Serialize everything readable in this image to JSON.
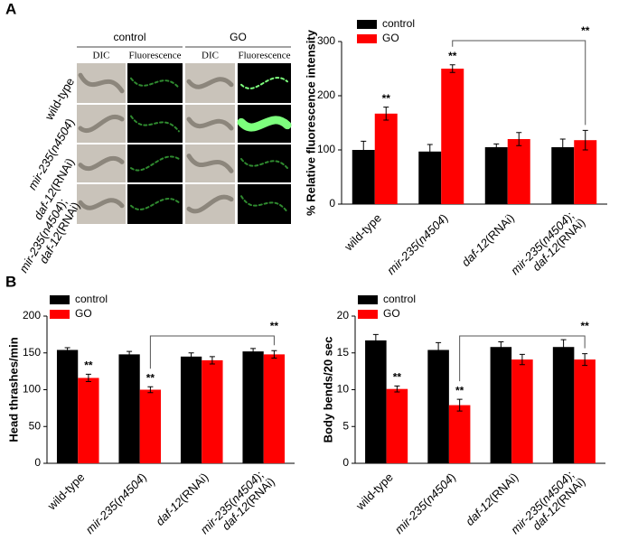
{
  "panels": [
    "A",
    "B"
  ],
  "image_grid": {
    "groups": [
      "control",
      "GO"
    ],
    "channels": [
      "DIC",
      "Fluorescence"
    ],
    "rows": [
      "wild-type",
      "mir-235(n4504)",
      "daf-12(RNAi)",
      "mir-235(n4504); daf-12(RNAi)"
    ]
  },
  "chart_data": [
    {
      "type": "bar",
      "ylabel": "% Relative fluorescence intensity",
      "categories": [
        "wild-type",
        "mir-235(n4504)",
        "daf-12(RNAi)",
        "mir-235(n4504); daf-12(RNAi)"
      ],
      "series": [
        {
          "name": "control",
          "color": "#000000",
          "values": [
            100,
            97,
            105,
            105
          ],
          "errors": [
            16,
            13,
            6,
            15
          ]
        },
        {
          "name": "GO",
          "color": "#ff0000",
          "values": [
            167,
            250,
            120,
            118
          ],
          "errors": [
            12,
            7,
            12,
            18
          ],
          "significance": [
            "**",
            "**",
            null,
            null
          ]
        }
      ],
      "comparisons": [
        {
          "label": "**",
          "from": 1,
          "to": 3
        }
      ],
      "ylim": [
        0,
        300
      ],
      "yticks": [
        0,
        100,
        200,
        300
      ],
      "grid": false,
      "legend": "top-left"
    },
    {
      "type": "bar",
      "ylabel": "Head thrashes/min",
      "categories": [
        "wild-type",
        "mir-235(n4504)",
        "daf-12(RNAi)",
        "mir-235(n4504); daf-12(RNAi)"
      ],
      "series": [
        {
          "name": "control",
          "color": "#000000",
          "values": [
            154,
            148,
            145,
            152
          ],
          "errors": [
            3,
            4,
            5,
            4
          ]
        },
        {
          "name": "GO",
          "color": "#ff0000",
          "values": [
            116,
            100,
            140,
            148
          ],
          "errors": [
            5,
            4,
            5,
            5
          ],
          "significance": [
            "**",
            "**",
            null,
            null
          ]
        }
      ],
      "comparisons": [
        {
          "label": "**",
          "from": 1,
          "to": 3
        }
      ],
      "ylim": [
        0,
        200
      ],
      "yticks": [
        0,
        50,
        100,
        150,
        200
      ],
      "grid": false,
      "legend": "top-left"
    },
    {
      "type": "bar",
      "ylabel": "Body bends/20 sec",
      "categories": [
        "wild-type",
        "mir-235(n4504)",
        "daf-12(RNAi)",
        "mir-235(n4504); daf-12(RNAi)"
      ],
      "series": [
        {
          "name": "control",
          "color": "#000000",
          "values": [
            16.7,
            15.4,
            15.8,
            15.8
          ],
          "errors": [
            0.8,
            1.0,
            0.7,
            1.0
          ]
        },
        {
          "name": "GO",
          "color": "#ff0000",
          "values": [
            10.1,
            7.9,
            14.1,
            14.1
          ],
          "errors": [
            0.4,
            0.8,
            0.7,
            0.8
          ],
          "significance": [
            "**",
            "**",
            null,
            null
          ]
        }
      ],
      "comparisons": [
        {
          "label": "**",
          "from": 1,
          "to": 3
        }
      ],
      "ylim": [
        0,
        20
      ],
      "yticks": [
        0,
        5,
        10,
        15,
        20
      ],
      "grid": false,
      "legend": "top-left"
    }
  ]
}
